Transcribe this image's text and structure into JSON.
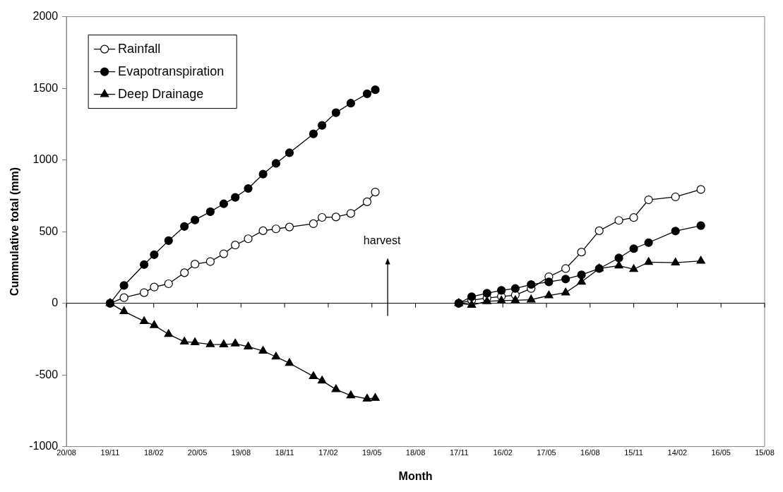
{
  "chart_data": {
    "type": "line",
    "xlabel": "Month",
    "ylabel": "Cummulative total (mm)",
    "xlim": [
      "2001-08-20",
      "2005-08-15"
    ],
    "ylim": [
      -1000,
      2000
    ],
    "xticks": [
      {
        "value": "2001-08-20",
        "label": "20/08"
      },
      {
        "value": "2001-11-19",
        "label": "19/11"
      },
      {
        "value": "2002-02-18",
        "label": "18/02"
      },
      {
        "value": "2002-05-20",
        "label": "20/05"
      },
      {
        "value": "2002-08-19",
        "label": "19/08"
      },
      {
        "value": "2002-11-18",
        "label": "18/11"
      },
      {
        "value": "2003-02-17",
        "label": "17/02"
      },
      {
        "value": "2003-05-19",
        "label": "19/05"
      },
      {
        "value": "2003-08-18",
        "label": "18/08"
      },
      {
        "value": "2003-11-17",
        "label": "17/11"
      },
      {
        "value": "2004-02-16",
        "label": "16/02"
      },
      {
        "value": "2004-05-17",
        "label": "17/05"
      },
      {
        "value": "2004-08-16",
        "label": "16/08"
      },
      {
        "value": "2004-11-15",
        "label": "15/11"
      },
      {
        "value": "2005-02-14",
        "label": "14/02"
      },
      {
        "value": "2005-05-16",
        "label": "16/05"
      },
      {
        "value": "2005-08-15",
        "label": "15/08"
      }
    ],
    "yticks": [
      -1000,
      -500,
      0,
      500,
      1000,
      1500,
      2000
    ],
    "x": [
      "2001-11-19",
      "2001-12-18",
      "2002-01-29",
      "2002-02-19",
      "2002-03-21",
      "2002-04-23",
      "2002-05-15",
      "2002-06-16",
      "2002-07-14",
      "2002-08-07",
      "2002-09-03",
      "2002-10-04",
      "2002-10-31",
      "2002-11-28",
      "2003-01-17",
      "2003-02-04",
      "2003-03-05",
      "2003-04-05",
      "2003-05-09",
      "2003-05-26",
      "2003-08-21",
      "2003-11-16",
      "2003-12-13",
      "2004-01-14",
      "2004-02-13",
      "2004-03-13",
      "2004-04-15",
      "2004-05-22",
      "2004-06-26",
      "2004-07-29",
      "2004-09-04",
      "2004-10-15",
      "2004-11-15",
      "2004-12-16",
      "2005-02-10",
      "2005-04-04"
    ],
    "legend": "top left",
    "line_style": "solid",
    "series": [
      {
        "name": "Rainfall",
        "color": "#ffffff",
        "marker": "circle",
        "values": [
          0,
          39,
          74,
          113,
          136,
          213,
          273,
          291,
          345,
          406,
          450,
          506,
          519,
          532,
          555,
          599,
          602,
          627,
          708,
          776,
          null,
          0,
          21,
          37,
          47,
          57,
          103,
          185,
          242,
          357,
          506,
          578,
          598,
          722,
          742,
          794
        ]
      },
      {
        "name": "Evapotranspiration",
        "color": "#000000",
        "marker": "circle",
        "values": [
          0,
          124,
          270,
          339,
          437,
          536,
          581,
          639,
          694,
          739,
          801,
          901,
          976,
          1050,
          1182,
          1241,
          1330,
          1396,
          1462,
          1490,
          null,
          0,
          46,
          70,
          90,
          103,
          131,
          149,
          169,
          198,
          242,
          316,
          381,
          423,
          504,
          542
        ]
      },
      {
        "name": "Deep Drainage",
        "color": "#000000",
        "marker": "triangle",
        "values": [
          0,
          -57,
          -126,
          -154,
          -216,
          -269,
          -274,
          -287,
          -288,
          -282,
          -303,
          -333,
          -374,
          -418,
          -510,
          -541,
          -601,
          -644,
          -667,
          -662,
          null,
          0,
          -12,
          13,
          18,
          21,
          25,
          54,
          74,
          149,
          242,
          262,
          237,
          287,
          283,
          295
        ]
      }
    ],
    "ref_lines": [
      {
        "axis": "y",
        "value": 0
      }
    ],
    "annotations": [
      "harvest"
    ]
  }
}
